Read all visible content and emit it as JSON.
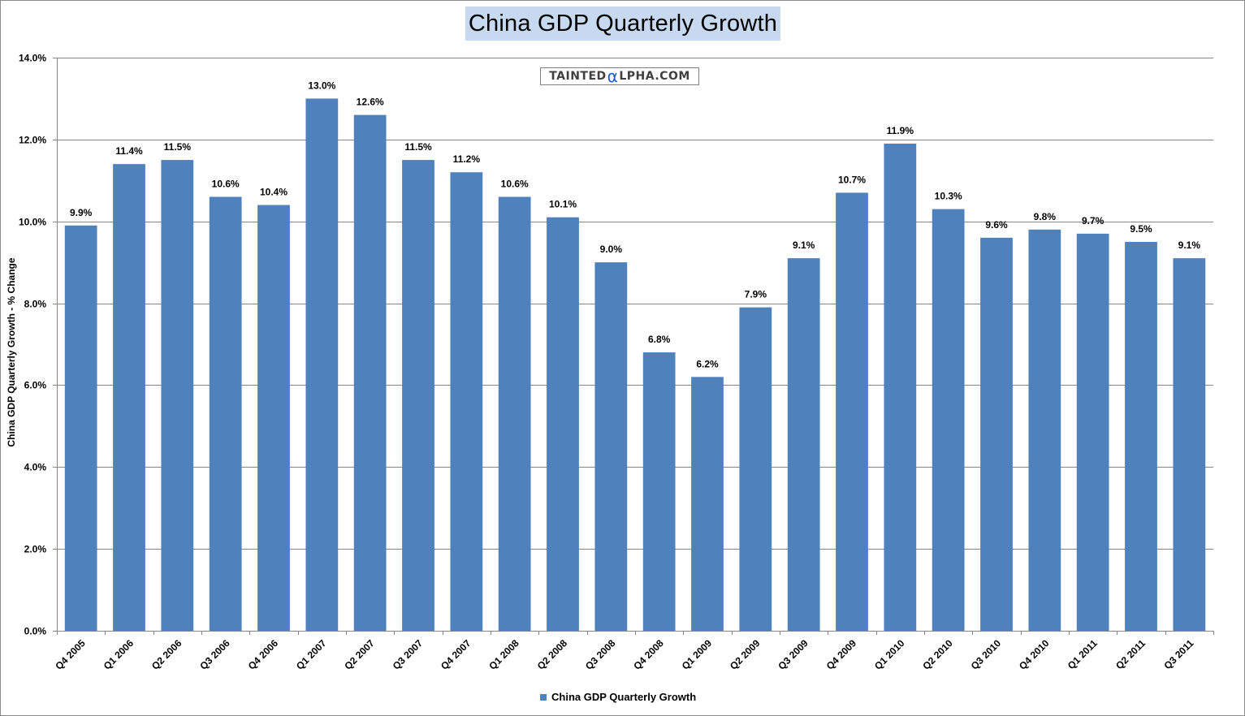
{
  "chart_data": {
    "type": "bar",
    "title": "China GDP Quarterly Growth",
    "ylabel": "China GDP Quarterly Growth - % Change",
    "xlabel": "",
    "ylim": [
      0,
      14
    ],
    "ytick_values": [
      0,
      2,
      4,
      6,
      8,
      10,
      12,
      14
    ],
    "ytick_labels": [
      "0.0%",
      "2.0%",
      "4.0%",
      "6.0%",
      "8.0%",
      "10.0%",
      "12.0%",
      "14.0%"
    ],
    "categories": [
      "Q4 2005",
      "Q1 2006",
      "Q2 2006",
      "Q3 2006",
      "Q4 2006",
      "Q1 2007",
      "Q2 2007",
      "Q3 2007",
      "Q4 2007",
      "Q1 2008",
      "Q2 2008",
      "Q3 2008",
      "Q4 2008",
      "Q1 2009",
      "Q2 2009",
      "Q3 2009",
      "Q4 2009",
      "Q1 2010",
      "Q2 2010",
      "Q3 2010",
      "Q4 2010",
      "Q1 2011",
      "Q2 2011",
      "Q3 2011"
    ],
    "values": [
      9.9,
      11.4,
      11.5,
      10.6,
      10.4,
      13.0,
      12.6,
      11.5,
      11.2,
      10.6,
      10.1,
      9.0,
      6.8,
      6.2,
      7.9,
      9.1,
      10.7,
      11.9,
      10.3,
      9.6,
      9.8,
      9.7,
      9.5,
      9.1
    ],
    "data_labels": [
      "9.9%",
      "11.4%",
      "11.5%",
      "10.6%",
      "10.4%",
      "13.0%",
      "12.6%",
      "11.5%",
      "11.2%",
      "10.6%",
      "10.1%",
      "9.0%",
      "6.8%",
      "6.2%",
      "7.9%",
      "9.1%",
      "10.7%",
      "11.9%",
      "10.3%",
      "9.6%",
      "9.8%",
      "9.7%",
      "9.5%",
      "9.1%"
    ],
    "series_name": "China GDP Quarterly Growth",
    "grid": true,
    "legend_position": "bottom-center",
    "bar_color": "#4f81bd"
  },
  "watermark": {
    "prefix": "TAINTED",
    "alpha": "α",
    "suffix": "LPHA.COM"
  }
}
